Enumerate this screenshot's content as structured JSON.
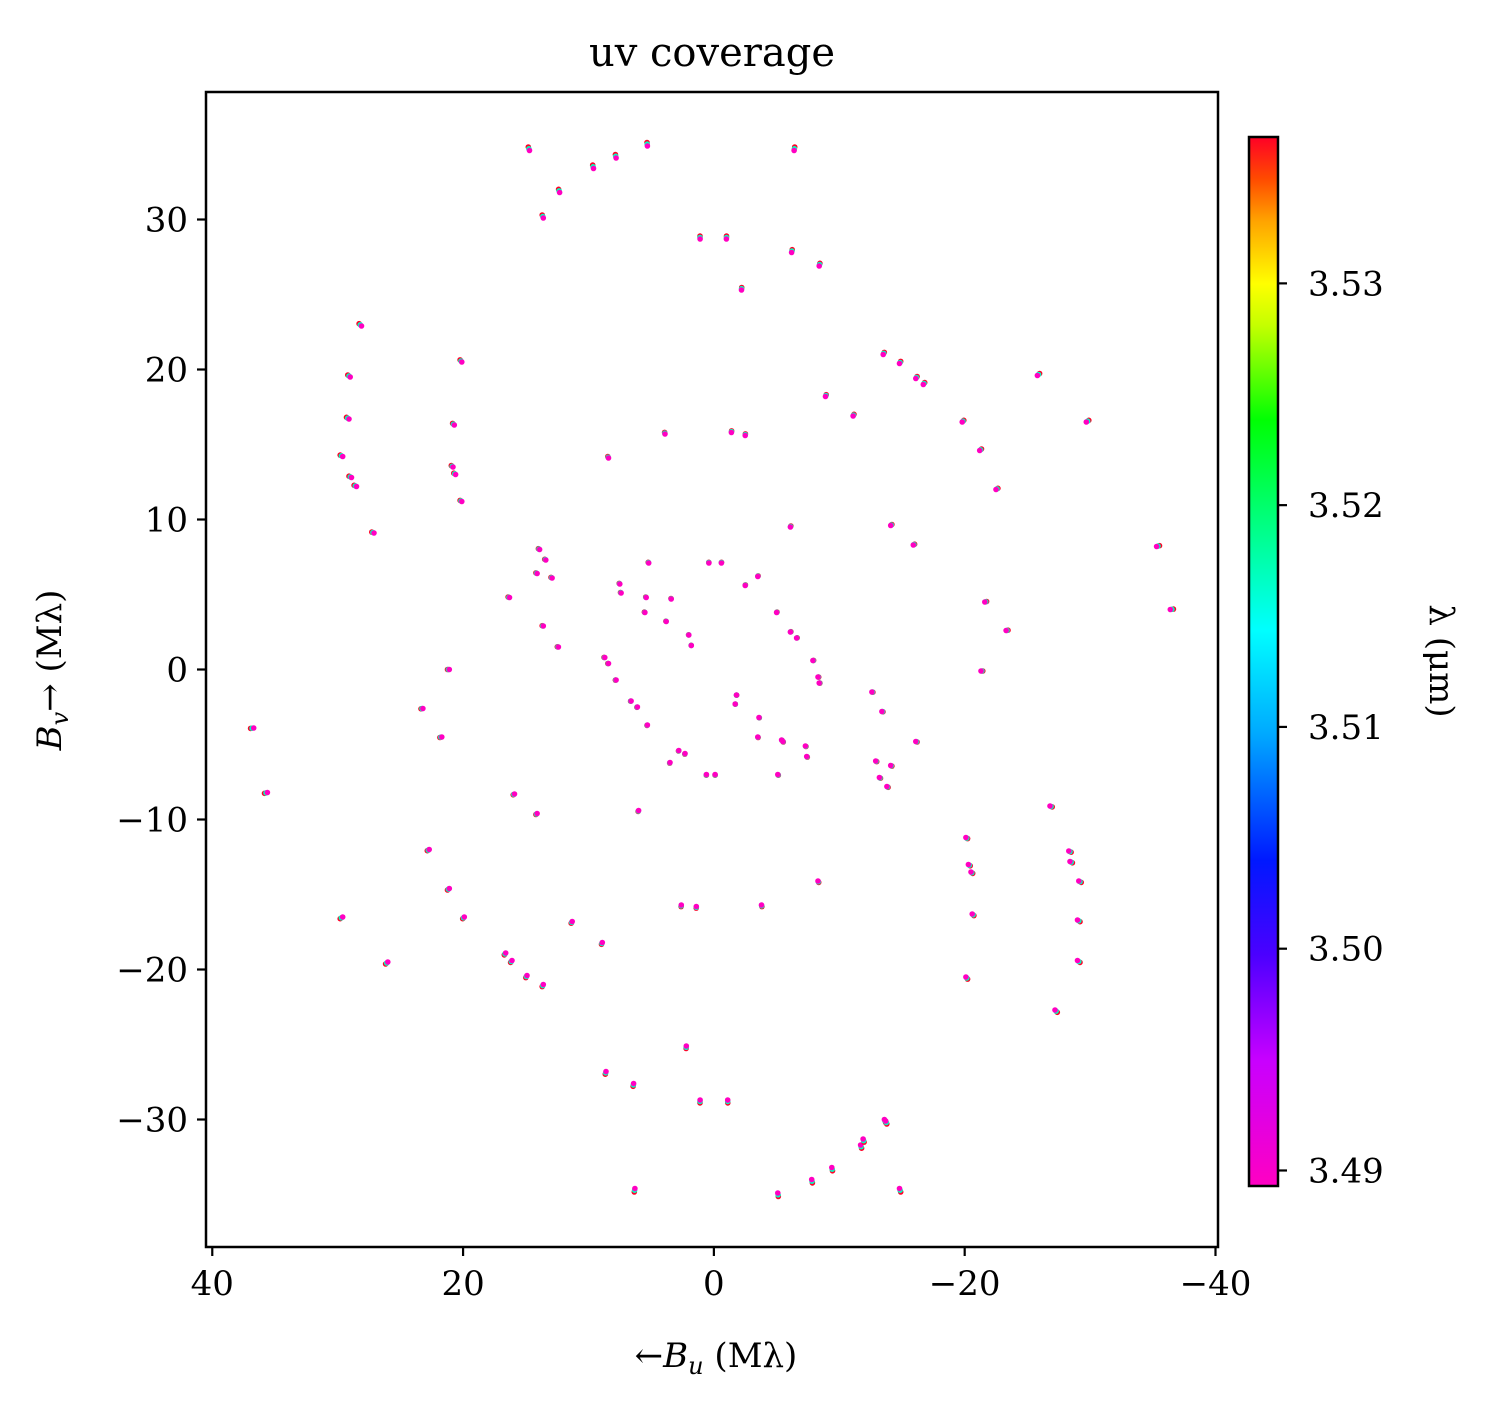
{
  "chart_data": {
    "type": "scatter",
    "title": "uv coverage",
    "xlabel": "←B_u (Mλ)",
    "ylabel": "B_v→ (Mλ)",
    "xlabel_parts": {
      "arrow": "←",
      "symbol": "B",
      "subscript": "u",
      "units": " (Mλ)"
    },
    "ylabel_parts": {
      "arrow": "→",
      "symbol": "B",
      "subscript": "v",
      "units": " (Mλ)"
    },
    "x_inverted": true,
    "xlim": [
      40.5,
      -40.2
    ],
    "ylim": [
      -38.5,
      38.5
    ],
    "xticks": [
      40,
      20,
      0,
      -20,
      -40
    ],
    "xtick_labels": [
      "40",
      "20",
      "0",
      "−20",
      "−40"
    ],
    "yticks": [
      -30,
      -20,
      -10,
      0,
      10,
      20,
      30
    ],
    "ytick_labels": [
      "−30",
      "−20",
      "−10",
      "0",
      "10",
      "20",
      "30"
    ],
    "grid": false,
    "colorbar": {
      "label": "λ (μm)",
      "range": [
        3.4893,
        3.5366
      ],
      "ticks": [
        3.49,
        3.5,
        3.51,
        3.52,
        3.53
      ],
      "tick_labels": [
        "3.49",
        "3.50",
        "3.51",
        "3.52",
        "3.53"
      ],
      "colormap": "gist_rainbow"
    },
    "wavelengths_um": [
      3.5366,
      3.513,
      3.4893
    ],
    "wavelength_colors": [
      "#ff0026",
      "#00ffc0",
      "#ff00c2"
    ],
    "point_offset_factor": 0.0067,
    "baselines": [
      [
        14.7,
        34.6
      ],
      [
        5.3,
        34.9
      ],
      [
        -6.4,
        34.6
      ],
      [
        7.8,
        34.1
      ],
      [
        9.6,
        33.4
      ],
      [
        12.3,
        31.8
      ],
      [
        13.6,
        30.1
      ],
      [
        1.1,
        28.7
      ],
      [
        -1.0,
        28.7
      ],
      [
        -6.2,
        27.8
      ],
      [
        -8.4,
        26.9
      ],
      [
        -2.2,
        25.3
      ],
      [
        28.1,
        22.9
      ],
      [
        29.0,
        19.5
      ],
      [
        20.1,
        20.5
      ],
      [
        -13.5,
        21.0
      ],
      [
        -14.8,
        20.4
      ],
      [
        -16.1,
        19.4
      ],
      [
        -16.7,
        19.0
      ],
      [
        -25.8,
        19.6
      ],
      [
        29.1,
        16.7
      ],
      [
        20.7,
        16.3
      ],
      [
        -8.9,
        18.2
      ],
      [
        -11.1,
        16.9
      ],
      [
        -19.8,
        16.5
      ],
      [
        -29.7,
        16.5
      ],
      [
        29.6,
        14.2
      ],
      [
        20.8,
        13.5
      ],
      [
        20.6,
        13.0
      ],
      [
        28.9,
        12.8
      ],
      [
        28.5,
        12.2
      ],
      [
        3.9,
        15.7
      ],
      [
        -1.4,
        15.8
      ],
      [
        -2.5,
        15.6
      ],
      [
        -21.2,
        14.6
      ],
      [
        8.4,
        14.1
      ],
      [
        20.1,
        11.2
      ],
      [
        27.1,
        9.1
      ],
      [
        -22.5,
        12.0
      ],
      [
        -6.1,
        9.5
      ],
      [
        -14.1,
        9.6
      ],
      [
        -15.9,
        8.3
      ],
      [
        -35.3,
        8.2
      ],
      [
        13.9,
        8.0
      ],
      [
        13.4,
        7.3
      ],
      [
        5.2,
        7.1
      ],
      [
        0.4,
        7.1
      ],
      [
        -0.6,
        7.1
      ],
      [
        14.1,
        6.4
      ],
      [
        12.9,
        6.1
      ],
      [
        -3.5,
        6.2
      ],
      [
        7.5,
        5.7
      ],
      [
        -2.5,
        5.6
      ],
      [
        16.3,
        4.8
      ],
      [
        7.4,
        5.1
      ],
      [
        5.4,
        4.8
      ],
      [
        3.4,
        4.7
      ],
      [
        5.5,
        3.8
      ],
      [
        -5.0,
        3.8
      ],
      [
        -21.6,
        4.5
      ],
      [
        -36.4,
        4.0
      ],
      [
        13.6,
        2.9
      ],
      [
        3.8,
        3.2
      ],
      [
        -6.1,
        2.5
      ],
      [
        -6.6,
        2.1
      ],
      [
        2.0,
        2.3
      ],
      [
        1.8,
        1.6
      ],
      [
        12.4,
        1.5
      ],
      [
        -23.3,
        2.6
      ],
      [
        -7.9,
        0.6
      ],
      [
        21.1,
        0.0
      ],
      [
        8.7,
        0.8
      ],
      [
        -21.3,
        -0.1
      ],
      [
        8.4,
        0.4
      ],
      [
        -8.3,
        -0.5
      ],
      [
        7.8,
        -0.7
      ],
      [
        -8.4,
        -0.9
      ],
      [
        -1.8,
        -1.7
      ],
      [
        -12.6,
        -1.5
      ],
      [
        -1.7,
        -2.3
      ],
      [
        6.6,
        -2.1
      ],
      [
        6.1,
        -2.5
      ],
      [
        -3.6,
        -3.2
      ],
      [
        23.2,
        -2.6
      ],
      [
        -13.4,
        -2.8
      ],
      [
        5.3,
        -3.7
      ],
      [
        -3.5,
        -4.5
      ],
      [
        21.7,
        -4.5
      ],
      [
        -16.1,
        -4.8
      ],
      [
        -5.4,
        -4.7
      ],
      [
        -5.5,
        -4.8
      ],
      [
        -7.3,
        -5.1
      ],
      [
        -7.4,
        -5.8
      ],
      [
        2.8,
        -5.4
      ],
      [
        2.3,
        -5.6
      ],
      [
        3.5,
        -6.2
      ],
      [
        -12.9,
        -6.1
      ],
      [
        -14.1,
        -6.4
      ],
      [
        -13.2,
        -7.2
      ],
      [
        0.6,
        -7.0
      ],
      [
        -0.1,
        -7.0
      ],
      [
        -5.1,
        -7.0
      ],
      [
        -13.8,
        -7.8
      ],
      [
        36.7,
        -3.9
      ],
      [
        35.6,
        -8.2
      ],
      [
        15.9,
        -8.3
      ],
      [
        14.1,
        -9.6
      ],
      [
        6.0,
        -9.4
      ],
      [
        -26.8,
        -9.1
      ],
      [
        -20.1,
        -11.2
      ],
      [
        22.7,
        -12.0
      ],
      [
        -28.3,
        -12.1
      ],
      [
        -20.3,
        -13.0
      ],
      [
        -20.5,
        -13.5
      ],
      [
        -28.4,
        -12.8
      ],
      [
        21.1,
        -14.6
      ],
      [
        -8.3,
        -14.1
      ],
      [
        -29.1,
        -14.1
      ],
      [
        2.6,
        -15.7
      ],
      [
        1.4,
        -15.8
      ],
      [
        -3.8,
        -15.7
      ],
      [
        29.6,
        -16.5
      ],
      [
        19.9,
        -16.5
      ],
      [
        11.3,
        -16.8
      ],
      [
        -20.6,
        -16.3
      ],
      [
        -29.0,
        -16.7
      ],
      [
        8.9,
        -18.2
      ],
      [
        16.6,
        -18.9
      ],
      [
        16.1,
        -19.4
      ],
      [
        26.0,
        -19.5
      ],
      [
        -20.1,
        -20.5
      ],
      [
        14.9,
        -20.4
      ],
      [
        13.6,
        -21.0
      ],
      [
        -29.0,
        -19.4
      ],
      [
        -27.2,
        -22.7
      ],
      [
        2.2,
        -25.1
      ],
      [
        8.6,
        -26.8
      ],
      [
        6.4,
        -27.6
      ],
      [
        1.1,
        -28.7
      ],
      [
        -1.1,
        -28.7
      ],
      [
        -13.6,
        -30.0
      ],
      [
        -13.7,
        -30.1
      ],
      [
        -11.7,
        -31.7
      ],
      [
        -11.9,
        -31.3
      ],
      [
        -9.4,
        -33.2
      ],
      [
        -7.8,
        -34.0
      ],
      [
        -14.8,
        -34.6
      ],
      [
        6.3,
        -34.6
      ],
      [
        -5.1,
        -34.9
      ]
    ]
  }
}
